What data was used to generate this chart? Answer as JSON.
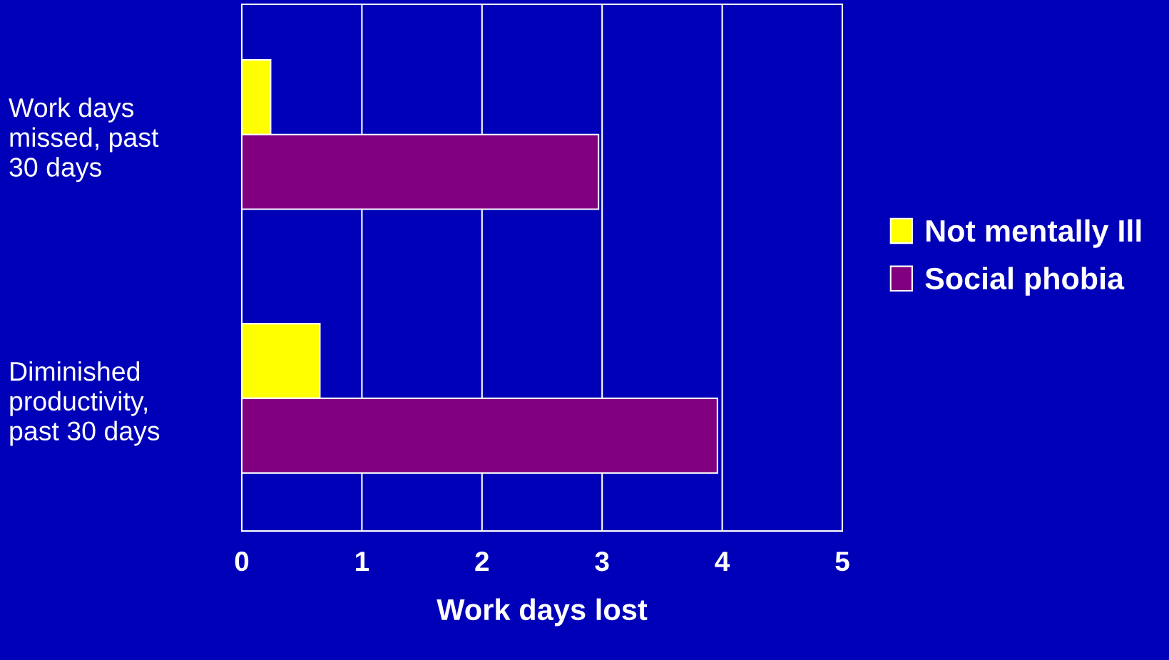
{
  "chart_data": {
    "type": "bar",
    "orientation": "horizontal",
    "xlabel": "Work days lost",
    "categories": [
      "Work days\nmissed, past\n30 days",
      "Diminished\nproductivity,\npast 30 days"
    ],
    "series": [
      {
        "name": "Not mentally Ill",
        "color": "#ffff00",
        "values": [
          0.24,
          0.65
        ]
      },
      {
        "name": "Social phobia",
        "color": "#800080",
        "values": [
          2.97,
          3.96
        ]
      }
    ],
    "xlim": [
      0,
      5
    ],
    "xticks": [
      0,
      1,
      2,
      3,
      4,
      5
    ],
    "grid": "x",
    "legend": "right"
  }
}
